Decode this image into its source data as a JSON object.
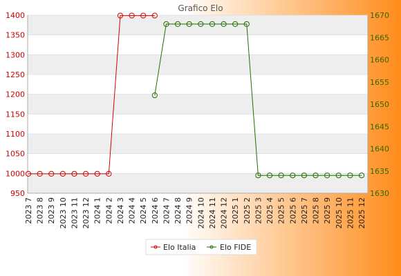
{
  "chart_data": {
    "type": "line",
    "title": "Grafico Elo",
    "categories": [
      "2023 7",
      "2023 8",
      "2023 9",
      "2023 10",
      "2023 11",
      "2023 12",
      "2024 1",
      "2024 2",
      "2024 3",
      "2024 4",
      "2024 5",
      "2024 6",
      "2024 7",
      "2024 8",
      "2024 9",
      "2024 10",
      "2024 11",
      "2024 12",
      "2025 1",
      "2025 2",
      "2025 3",
      "2025 4",
      "2025 5",
      "2025 6",
      "2025 7",
      "2025 8",
      "2025 9",
      "2025 10",
      "2025 11",
      "2025 12"
    ],
    "left_axis": {
      "ylim": [
        950,
        1400
      ],
      "ticks": [
        950,
        1000,
        1050,
        1100,
        1150,
        1200,
        1250,
        1300,
        1350,
        1400
      ],
      "color": "#cc0000"
    },
    "right_axis": {
      "ylim": [
        1630,
        1670
      ],
      "ticks": [
        1630,
        1635,
        1640,
        1645,
        1650,
        1655,
        1660,
        1665,
        1670
      ],
      "color": "#336600"
    },
    "grid": true,
    "legend_placement": "bottom-center",
    "series": [
      {
        "name": "Elo Italia",
        "axis": "left",
        "color": "#d40000",
        "values": [
          999,
          999,
          999,
          999,
          999,
          999,
          999,
          999,
          1399,
          1399,
          1399,
          1399,
          null,
          null,
          null,
          null,
          null,
          null,
          null,
          null,
          null,
          null,
          null,
          null,
          null,
          null,
          null,
          null,
          null,
          null
        ]
      },
      {
        "name": "Elo FIDE",
        "axis": "right",
        "color": "#1f6f00",
        "values": [
          null,
          null,
          null,
          null,
          null,
          null,
          null,
          null,
          null,
          null,
          null,
          1652,
          1668,
          1668,
          1668,
          1668,
          1668,
          1668,
          1668,
          1668,
          1634,
          1634,
          1634,
          1634,
          1634,
          1634,
          1634,
          1634,
          1634,
          1634
        ]
      }
    ]
  },
  "colors": {
    "background_left": "#ffffff",
    "background_right": "#ff8c1a",
    "plot_band": "#eeeeee",
    "plot_background": "#ffffff"
  }
}
